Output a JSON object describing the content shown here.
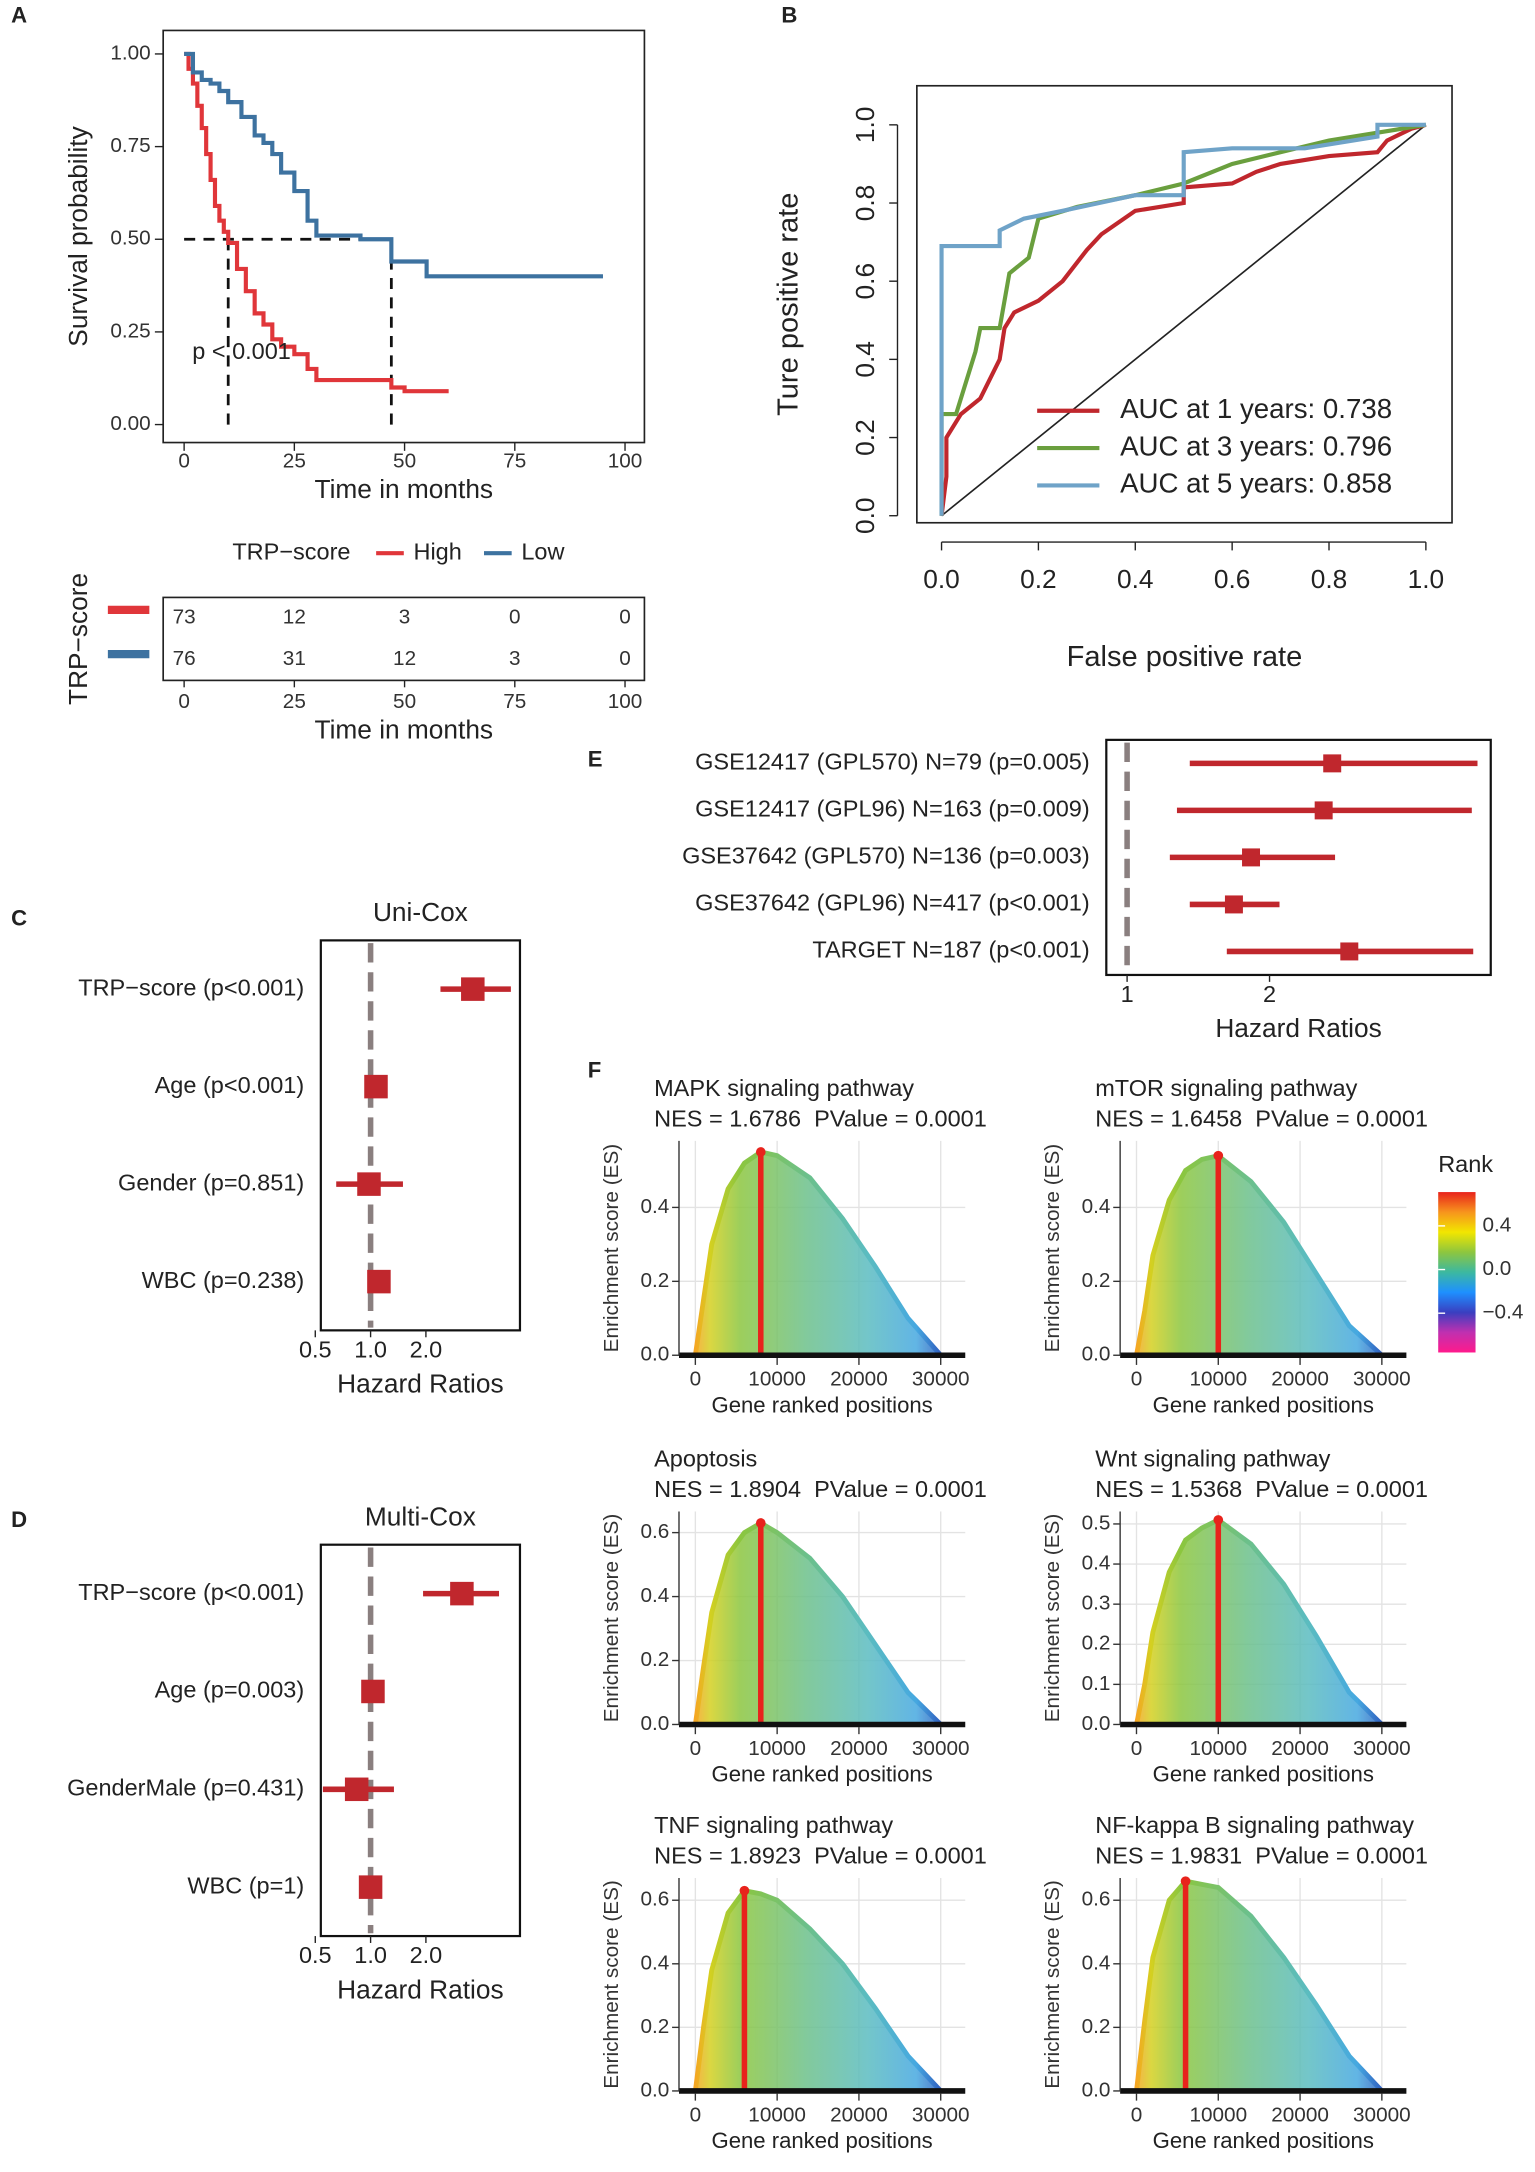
{
  "chart_data": [
    {
      "type": "line",
      "step": true,
      "panel": "A",
      "xlabel": "Time in months",
      "ylabel": "Survival probability",
      "xlim": [
        -4.75,
        104.4
      ],
      "ylim": [
        -0.0485,
        1.0634
      ],
      "xticks": [
        0,
        25,
        50,
        75,
        100
      ],
      "yticks": [
        {
          "value": 0,
          "label": "0.00"
        },
        0.25,
        {
          "value": 0.5,
          "label": "0.50"
        },
        0.75,
        {
          "value": 1,
          "label": "1.00"
        }
      ],
      "legend": "bottom",
      "legend_title": "TRP−score",
      "annotation": "p < 0.001",
      "medians": {
        "level": 0.5,
        "x": [
          10,
          47
        ]
      },
      "series": [
        {
          "name": "High",
          "color": "#e0363a",
          "x": [
            0,
            1,
            2,
            3,
            4,
            5,
            6,
            7,
            8,
            9,
            10,
            12,
            14,
            16,
            18,
            20,
            22,
            25,
            28,
            30,
            40,
            47,
            50,
            60
          ],
          "values": [
            1,
            0.96,
            0.92,
            0.86,
            0.8,
            0.73,
            0.66,
            0.59,
            0.55,
            0.52,
            0.49,
            0.42,
            0.36,
            0.3,
            0.27,
            0.23,
            0.21,
            0.19,
            0.15,
            0.12,
            0.12,
            0.1,
            0.09,
            0.09
          ]
        },
        {
          "name": "Low",
          "color": "#3d72a0",
          "x": [
            0,
            2,
            4,
            6,
            8,
            10,
            13,
            16,
            18,
            20,
            22,
            25,
            28,
            30,
            35,
            40,
            47,
            55,
            60,
            70,
            80,
            95
          ],
          "values": [
            1,
            0.95,
            0.93,
            0.92,
            0.9,
            0.87,
            0.83,
            0.78,
            0.76,
            0.73,
            0.68,
            0.63,
            0.55,
            0.51,
            0.51,
            0.5,
            0.44,
            0.4,
            0.4,
            0.4,
            0.4,
            0.4
          ]
        }
      ]
    },
    {
      "type": "table",
      "xlabel": "Time in months",
      "ylabel": "TRP−score",
      "xlim": [
        -4.75,
        104.4
      ],
      "xticks": [
        0,
        25,
        50,
        75,
        100
      ],
      "x": [
        0,
        25,
        50,
        75,
        100
      ],
      "series": [
        {
          "color": "#e0363a",
          "values": [
            73,
            12,
            3,
            0,
            0
          ]
        },
        {
          "color": "#3d72a0",
          "values": [
            76,
            31,
            12,
            3,
            0
          ]
        }
      ]
    },
    {
      "type": "line",
      "panel": "B",
      "xlabel": "False positive rate",
      "ylabel": "Ture positive rate",
      "diagonal": true,
      "xlim": [
        -0.051,
        1.054
      ],
      "ylim": [
        -0.018,
        1.1
      ],
      "xticks": [
        {
          "value": 0,
          "label": "0.0"
        },
        0.2,
        0.4,
        0.6,
        0.8,
        {
          "value": 1,
          "label": "1.0"
        }
      ],
      "yticks": [
        {
          "value": 0,
          "label": "0.0"
        },
        0.2,
        0.4,
        0.6,
        0.8,
        {
          "value": 1,
          "label": "1.0"
        }
      ],
      "legend": "bottom-right",
      "series": [
        {
          "name": "AUC at 1 years: 0.738",
          "color": "#c0272d",
          "x": [
            0,
            0.01,
            0.01,
            0.04,
            0.08,
            0.12,
            0.13,
            0.15,
            0.2,
            0.25,
            0.3,
            0.33,
            0.4,
            0.5,
            0.5,
            0.6,
            0.65,
            0.7,
            0.8,
            0.9,
            0.92,
            0.97,
            1
          ],
          "values": [
            0,
            0.1,
            0.2,
            0.26,
            0.3,
            0.4,
            0.48,
            0.52,
            0.55,
            0.6,
            0.68,
            0.72,
            0.78,
            0.8,
            0.84,
            0.85,
            0.88,
            0.9,
            0.92,
            0.93,
            0.96,
            0.99,
            1
          ]
        },
        {
          "name": "AUC at 3 years: 0.796",
          "color": "#6a9f3e",
          "x": [
            0,
            0,
            0.03,
            0.07,
            0.08,
            0.12,
            0.14,
            0.18,
            0.2,
            0.28,
            0.4,
            0.5,
            0.6,
            0.8,
            0.9,
            1
          ],
          "values": [
            0,
            0.26,
            0.26,
            0.42,
            0.48,
            0.48,
            0.62,
            0.66,
            0.76,
            0.79,
            0.82,
            0.85,
            0.9,
            0.96,
            0.98,
            1
          ]
        },
        {
          "name": "AUC at 5 years: 0.858",
          "color": "#6fa3c8",
          "x": [
            0,
            0,
            0.12,
            0.12,
            0.17,
            0.25,
            0.4,
            0.5,
            0.5,
            0.6,
            0.75,
            0.9,
            0.9,
            1
          ],
          "values": [
            0,
            0.69,
            0.69,
            0.73,
            0.76,
            0.78,
            0.82,
            0.82,
            0.93,
            0.94,
            0.94,
            0.97,
            1,
            1
          ]
        }
      ]
    },
    {
      "type": "forest",
      "panel": "C",
      "title": "Uni-Cox",
      "xlabel": "Hazard Ratios",
      "log_x": true,
      "xlim": [
        0.536,
        6.5
      ],
      "xticks": [
        0.5,
        {
          "value": 1,
          "label": "1.0"
        },
        {
          "value": 2,
          "label": "2.0"
        }
      ],
      "reference": 1,
      "color": "#c0272d",
      "categories": [
        "TRP−score (p<0.001)",
        "Age (p<0.001)",
        "Gender (p=0.851)",
        "WBC (p=0.238)"
      ],
      "values": [
        3.6,
        1.07,
        0.98,
        1.11
      ],
      "lower": [
        2.4,
        1.04,
        0.65,
        1.08
      ],
      "upper": [
        5.8,
        1.1,
        1.5,
        1.14
      ]
    },
    {
      "type": "forest",
      "panel": "D",
      "title": "Multi-Cox",
      "xlabel": "Hazard Ratios",
      "log_x": true,
      "xlim": [
        0.536,
        6.5
      ],
      "xticks": [
        0.5,
        {
          "value": 1,
          "label": "1.0"
        },
        {
          "value": 2,
          "label": "2.0"
        }
      ],
      "reference": 1,
      "color": "#c0272d",
      "categories": [
        "TRP−score (p<0.001)",
        "Age (p=0.003)",
        "GenderMale (p=0.431)",
        "WBC (p=1)"
      ],
      "values": [
        3.14,
        1.03,
        0.84,
        1.0
      ],
      "lower": [
        1.93,
        1.0,
        0.55,
        0.98
      ],
      "upper": [
        5.0,
        1.06,
        1.34,
        1.03
      ]
    },
    {
      "type": "forest",
      "panel": "E",
      "xlabel": "Hazard Ratios",
      "xlim": [
        0.854,
        3.553
      ],
      "xticks": [
        1,
        2
      ],
      "reference": 1,
      "color": "#c0272d",
      "categories": [
        "GSE12417 (GPL570) N=79 (p=0.005)",
        "GSE12417 (GPL96) N=163 (p=0.009)",
        "GSE37642 (GPL570) N=136 (p=0.003)",
        "GSE37642 (GPL96) N=417 (p<0.001)",
        "TARGET N=187 (p<0.001)"
      ],
      "values": [
        2.44,
        2.38,
        1.87,
        1.75,
        2.56
      ],
      "lower": [
        1.44,
        1.35,
        1.3,
        1.44,
        1.7
      ],
      "upper": [
        3.46,
        3.42,
        2.46,
        2.07,
        3.43
      ]
    },
    {
      "type": "area",
      "panel": "F",
      "title": "MAPK signaling pathway",
      "subtitle": "NES = 1.6786  PValue = 0.0001",
      "xlabel": "Gene ranked positions",
      "ylabel": "Enrichment score (ES)",
      "xlim": [
        -2000,
        33000
      ],
      "ylim": [
        0,
        0.58
      ],
      "xticks": [
        0,
        10000,
        20000,
        30000
      ],
      "yticks": [
        {
          "value": 0,
          "label": "0.0"
        },
        0.2,
        0.4
      ],
      "color": "#e8231c",
      "x": [
        0,
        1000,
        2000,
        4000,
        6000,
        8000,
        10000,
        14000,
        18000,
        22000,
        26000,
        30000
      ],
      "values": [
        0,
        0.15,
        0.3,
        0.45,
        0.52,
        0.55,
        0.54,
        0.48,
        0.37,
        0.24,
        0.1,
        0
      ]
    },
    {
      "type": "area",
      "title": "mTOR signaling pathway",
      "subtitle": "NES = 1.6458  PValue = 0.0001",
      "xlabel": "Gene ranked positions",
      "ylabel": "Enrichment score (ES)",
      "xlim": [
        -2000,
        33000
      ],
      "ylim": [
        0,
        0.58
      ],
      "xticks": [
        0,
        10000,
        20000,
        30000
      ],
      "yticks": [
        {
          "value": 0,
          "label": "0.0"
        },
        0.2,
        0.4
      ],
      "color": "#e8231c",
      "x": [
        0,
        1000,
        2000,
        4000,
        6000,
        8000,
        10000,
        14000,
        18000,
        22000,
        26000,
        30000
      ],
      "values": [
        0,
        0.12,
        0.27,
        0.42,
        0.5,
        0.53,
        0.54,
        0.47,
        0.36,
        0.22,
        0.08,
        0
      ]
    },
    {
      "type": "area",
      "title": "Apoptosis",
      "subtitle": "NES = 1.8904  PValue = 0.0001",
      "xlabel": "Gene ranked positions",
      "ylabel": "Enrichment score (ES)",
      "xlim": [
        -2000,
        33000
      ],
      "ylim": [
        0,
        0.666
      ],
      "xticks": [
        0,
        10000,
        20000,
        30000
      ],
      "yticks": [
        {
          "value": 0,
          "label": "0.0"
        },
        0.2,
        0.4,
        0.6
      ],
      "color": "#e8231c",
      "x": [
        0,
        1000,
        2000,
        4000,
        6000,
        8000,
        10000,
        14000,
        18000,
        22000,
        26000,
        30000
      ],
      "values": [
        0,
        0.18,
        0.35,
        0.53,
        0.6,
        0.63,
        0.6,
        0.52,
        0.4,
        0.25,
        0.1,
        0
      ]
    },
    {
      "type": "area",
      "title": "Wnt signaling pathway",
      "subtitle": "NES = 1.5368  PValue = 0.0001",
      "xlabel": "Gene ranked positions",
      "ylabel": "Enrichment score (ES)",
      "xlim": [
        -2000,
        33000
      ],
      "ylim": [
        0,
        0.531
      ],
      "xticks": [
        0,
        10000,
        20000,
        30000
      ],
      "yticks": [
        {
          "value": 0,
          "label": "0.0"
        },
        0.1,
        0.2,
        0.3,
        0.4,
        0.5
      ],
      "color": "#e8231c",
      "x": [
        0,
        1000,
        2000,
        4000,
        6000,
        8000,
        10000,
        14000,
        18000,
        22000,
        26000,
        30000
      ],
      "values": [
        0,
        0.1,
        0.23,
        0.38,
        0.46,
        0.49,
        0.51,
        0.45,
        0.35,
        0.22,
        0.08,
        0
      ]
    },
    {
      "type": "area",
      "title": "TNF signaling pathway",
      "subtitle": "NES = 1.8923  PValue = 0.0001",
      "xlabel": "Gene ranked positions",
      "ylabel": "Enrichment score (ES)",
      "xlim": [
        -2000,
        33000
      ],
      "ylim": [
        0,
        0.67
      ],
      "xticks": [
        0,
        10000,
        20000,
        30000
      ],
      "yticks": [
        {
          "value": 0,
          "label": "0.0"
        },
        0.2,
        0.4,
        0.6
      ],
      "color": "#e8231c",
      "x": [
        0,
        1000,
        2000,
        4000,
        6000,
        8000,
        10000,
        14000,
        18000,
        22000,
        26000,
        30000
      ],
      "values": [
        0,
        0.2,
        0.38,
        0.56,
        0.63,
        0.62,
        0.6,
        0.51,
        0.4,
        0.26,
        0.11,
        0
      ]
    },
    {
      "type": "area",
      "title": "NF-kappa B signaling pathway",
      "subtitle": "NES = 1.9831  PValue = 0.0001",
      "xlabel": "Gene ranked positions",
      "ylabel": "Enrichment score (ES)",
      "xlim": [
        -2000,
        33000
      ],
      "ylim": [
        0,
        0.67
      ],
      "xticks": [
        0,
        10000,
        20000,
        30000
      ],
      "yticks": [
        {
          "value": 0,
          "label": "0.0"
        },
        0.2,
        0.4,
        0.6
      ],
      "color": "#e8231c",
      "x": [
        0,
        1000,
        2000,
        4000,
        6000,
        8000,
        10000,
        14000,
        18000,
        22000,
        26000,
        30000
      ],
      "values": [
        0,
        0.22,
        0.42,
        0.6,
        0.66,
        0.65,
        0.64,
        0.55,
        0.42,
        0.27,
        0.11,
        0
      ]
    },
    {
      "type": "colorbar",
      "title": "Rank",
      "lim": [
        -0.76,
        0.71
      ],
      "ticks": [
        0.4,
        {
          "value": 0,
          "label": "0.0"
        },
        {
          "value": -0.4,
          "label": "−0.4"
        }
      ],
      "colors": [
        "#ff1a8c",
        "#c030b0",
        "#3a3fc0",
        "#1e90ff",
        "#3cb8a0",
        "#8dc63f",
        "#f2e600",
        "#f7941d",
        "#e8231c"
      ]
    }
  ]
}
